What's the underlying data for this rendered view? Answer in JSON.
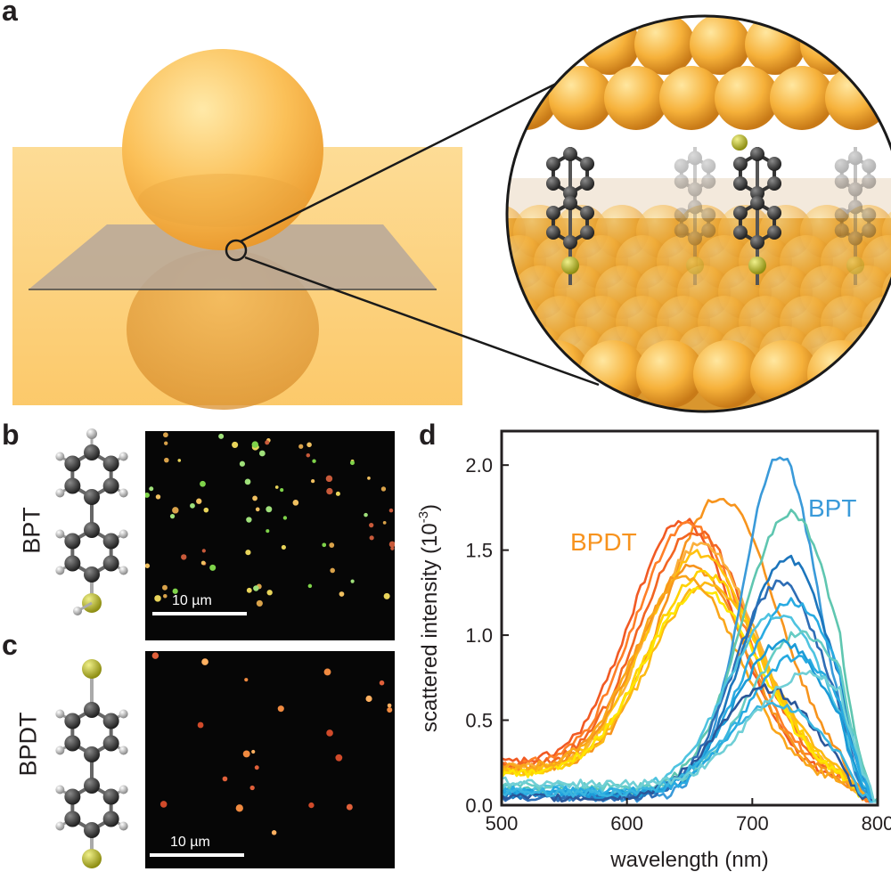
{
  "panels": {
    "a": "a",
    "b": "b",
    "c": "c",
    "d": "d"
  },
  "molecules": {
    "b_label": "BPT",
    "c_label": "BPDT"
  },
  "micrographs": {
    "b_scale": "10 µm",
    "c_scale": "10 µm"
  },
  "chart_data": {
    "type": "line",
    "xlabel": "wavelength (nm)",
    "ylabel": "scattered intensity (10",
    "ylabel_exp": "-3",
    "ylabel_close": ")",
    "xlim": [
      500,
      800
    ],
    "ylim": [
      0,
      2.2
    ],
    "xticks": [
      "500",
      "600",
      "700",
      "800"
    ],
    "yticks": [
      "0.0",
      "0.5",
      "1.0",
      "1.5",
      "2.0"
    ],
    "annotations": {
      "bpdt": "BPDT",
      "bpt": "BPT"
    },
    "colors": {
      "bpdt_label": "#f7931e",
      "bpt_label": "#3a9ad9"
    },
    "series": [
      {
        "group": "BPDT",
        "color": "#f7941d",
        "peak_x": 675,
        "peak_y": 1.86,
        "width": 45,
        "base": 0.22
      },
      {
        "group": "BPDT",
        "color": "#f15a24",
        "peak_x": 645,
        "peak_y": 1.72,
        "width": 42,
        "base": 0.25
      },
      {
        "group": "BPDT",
        "color": "#ff7f27",
        "peak_x": 650,
        "peak_y": 1.7,
        "width": 43,
        "base": 0.24
      },
      {
        "group": "BPDT",
        "color": "#f26522",
        "peak_x": 655,
        "peak_y": 1.66,
        "width": 44,
        "base": 0.23
      },
      {
        "group": "BPDT",
        "color": "#fbb03b",
        "peak_x": 660,
        "peak_y": 1.58,
        "width": 44,
        "base": 0.22
      },
      {
        "group": "BPDT",
        "color": "#ffc20e",
        "peak_x": 658,
        "peak_y": 1.52,
        "width": 45,
        "base": 0.2
      },
      {
        "group": "BPDT",
        "color": "#f7941d",
        "peak_x": 652,
        "peak_y": 1.45,
        "width": 43,
        "base": 0.21
      },
      {
        "group": "BPDT",
        "color": "#ffd200",
        "peak_x": 662,
        "peak_y": 1.4,
        "width": 46,
        "base": 0.19
      },
      {
        "group": "BPDT",
        "color": "#fdb913",
        "peak_x": 665,
        "peak_y": 1.35,
        "width": 46,
        "base": 0.2
      },
      {
        "group": "BPDT",
        "color": "#ffe600",
        "peak_x": 660,
        "peak_y": 1.3,
        "width": 47,
        "base": 0.18
      },
      {
        "group": "BPDT",
        "color": "#faa61a",
        "peak_x": 648,
        "peak_y": 1.38,
        "width": 42,
        "base": 0.22
      },
      {
        "group": "BPT",
        "color": "#3a9ad9",
        "peak_x": 722,
        "peak_y": 2.08,
        "width": 30,
        "base": 0.05
      },
      {
        "group": "BPT",
        "color": "#5fc6b0",
        "peak_x": 730,
        "peak_y": 1.75,
        "width": 38,
        "base": 0.1
      },
      {
        "group": "BPT",
        "color": "#1c75bc",
        "peak_x": 728,
        "peak_y": 1.47,
        "width": 36,
        "base": 0.06
      },
      {
        "group": "BPT",
        "color": "#2e6db5",
        "peak_x": 722,
        "peak_y": 1.32,
        "width": 37,
        "base": 0.05
      },
      {
        "group": "BPT",
        "color": "#29abe2",
        "peak_x": 732,
        "peak_y": 1.22,
        "width": 40,
        "base": 0.08
      },
      {
        "group": "BPT",
        "color": "#4ec3e0",
        "peak_x": 720,
        "peak_y": 1.15,
        "width": 40,
        "base": 0.1
      },
      {
        "group": "BPT",
        "color": "#66ccc4",
        "peak_x": 740,
        "peak_y": 1.05,
        "width": 42,
        "base": 0.12
      },
      {
        "group": "BPT",
        "color": "#1b9bd7",
        "peak_x": 725,
        "peak_y": 0.98,
        "width": 39,
        "base": 0.07
      },
      {
        "group": "BPT",
        "color": "#27aae1",
        "peak_x": 735,
        "peak_y": 0.9,
        "width": 41,
        "base": 0.09
      },
      {
        "group": "BPT",
        "color": "#2b579a",
        "peak_x": 712,
        "peak_y": 0.7,
        "width": 40,
        "base": 0.05
      },
      {
        "group": "BPT",
        "color": "#39b5e0",
        "peak_x": 718,
        "peak_y": 0.62,
        "width": 42,
        "base": 0.08
      },
      {
        "group": "BPT",
        "color": "#70cfd6",
        "peak_x": 745,
        "peak_y": 0.82,
        "width": 45,
        "base": 0.14
      }
    ]
  }
}
